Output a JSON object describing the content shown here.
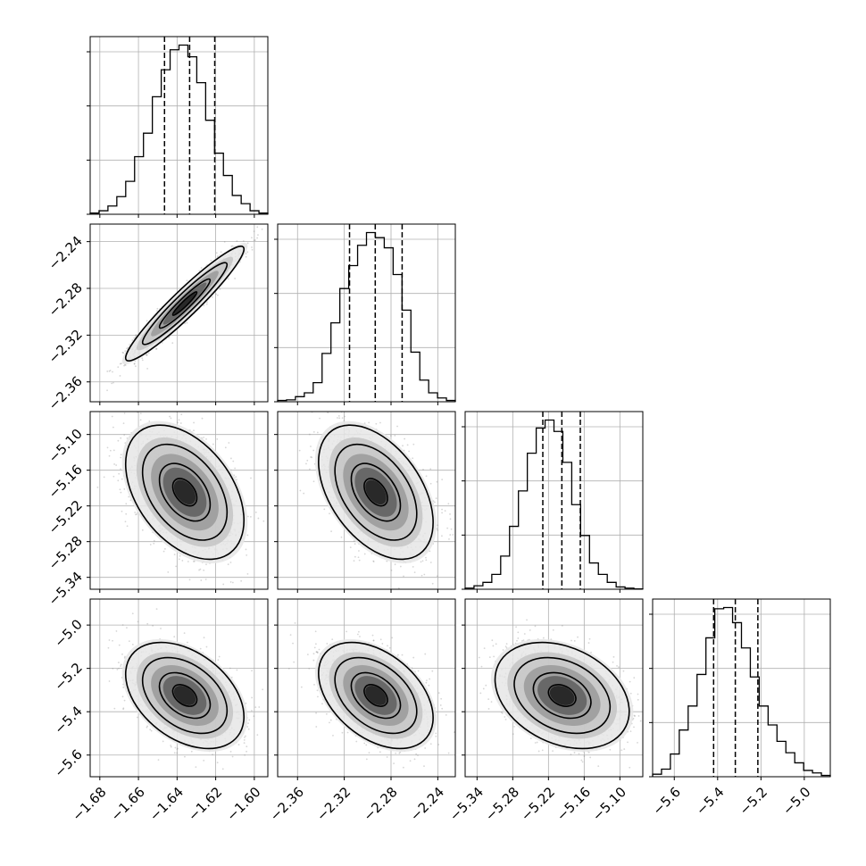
{
  "chart_data": {
    "type": "corner",
    "title": "",
    "grid": true,
    "variables": [
      {
        "index": 0,
        "range": [
          -1.685,
          -1.593
        ],
        "quantiles": [
          -1.6465,
          -1.6335,
          -1.6205
        ],
        "ticks": [
          {
            "value": -1.68,
            "label": "−1.68"
          },
          {
            "value": -1.66,
            "label": "−1.66"
          },
          {
            "value": -1.64,
            "label": "−1.64"
          },
          {
            "value": -1.62,
            "label": "−1.62"
          },
          {
            "value": -1.6,
            "label": "−1.60"
          }
        ],
        "histogram": [
          0.2,
          0.6,
          1.4,
          3.0,
          5.6,
          9.8,
          13.8,
          20.0,
          24.6,
          28.0,
          28.8,
          26.8,
          22.4,
          16.0,
          10.4,
          6.6,
          3.2,
          1.8,
          0.6,
          0.2
        ]
      },
      {
        "index": 1,
        "range": [
          -2.377,
          -2.225
        ],
        "quantiles": [
          -2.3155,
          -2.2935,
          -2.2705
        ],
        "ticks": [
          {
            "value": -2.36,
            "label": "−2.36"
          },
          {
            "value": -2.32,
            "label": "−2.32"
          },
          {
            "value": -2.28,
            "label": "−2.28"
          },
          {
            "value": -2.24,
            "label": "−2.24"
          }
        ],
        "histogram": [
          0.2,
          0.3,
          0.8,
          1.4,
          3.0,
          7.6,
          12.4,
          17.8,
          21.4,
          24.6,
          26.6,
          25.8,
          24.2,
          20.0,
          14.4,
          7.8,
          3.4,
          1.4,
          0.6,
          0.2
        ]
      },
      {
        "index": 2,
        "range": [
          -5.36,
          -5.0615
        ],
        "quantiles": [
          -5.2295,
          -5.1975,
          -5.1665
        ],
        "ticks": [
          {
            "value": -5.34,
            "label": "−5.34"
          },
          {
            "value": -5.28,
            "label": "−5.28"
          },
          {
            "value": -5.22,
            "label": "−5.22"
          },
          {
            "value": -5.16,
            "label": "−5.16"
          },
          {
            "value": -5.1,
            "label": "−5.10"
          }
        ],
        "histogram": [
          0.2,
          0.6,
          1.2,
          2.6,
          5.8,
          11.0,
          17.2,
          23.8,
          28.2,
          29.6,
          27.6,
          22.2,
          14.8,
          9.4,
          4.6,
          2.6,
          1.2,
          0.4,
          0.2,
          0.05
        ]
      },
      {
        "index": 3,
        "range": [
          -5.7,
          -4.88
        ],
        "quantiles": [
          -5.4185,
          -5.3183,
          -5.2143
        ],
        "ticks": [
          {
            "value": -5.6,
            "label": "−5.6"
          },
          {
            "value": -5.4,
            "label": "−5.4"
          },
          {
            "value": -5.2,
            "label": "−5.2"
          },
          {
            "value": -5.0,
            "label": "−5.0"
          }
        ],
        "histogram": [
          0.4,
          1.2,
          3.6,
          7.4,
          11.2,
          16.2,
          22.0,
          26.6,
          26.8,
          24.4,
          20.4,
          15.8,
          11.2,
          8.2,
          5.6,
          3.8,
          2.2,
          1.0,
          0.6,
          0.2
        ]
      }
    ],
    "pairs": [
      {
        "row": 1,
        "col": 0,
        "center": [
          -1.636,
          -2.293
        ],
        "sd": [
          0.0125,
          0.02
        ],
        "rho": 0.95
      },
      {
        "row": 2,
        "col": 0,
        "center": [
          -1.636,
          -5.197
        ],
        "sd": [
          0.0125,
          0.046
        ],
        "rho": -0.42
      },
      {
        "row": 2,
        "col": 1,
        "center": [
          -2.293,
          -5.197
        ],
        "sd": [
          0.02,
          0.046
        ],
        "rho": -0.45
      },
      {
        "row": 3,
        "col": 0,
        "center": [
          -1.636,
          -5.325
        ],
        "sd": [
          0.0125,
          0.1
        ],
        "rho": -0.4
      },
      {
        "row": 3,
        "col": 1,
        "center": [
          -2.293,
          -5.325
        ],
        "sd": [
          0.02,
          0.1
        ],
        "rho": -0.42
      },
      {
        "row": 3,
        "col": 2,
        "center": [
          -5.197,
          -5.325
        ],
        "sd": [
          0.046,
          0.1
        ],
        "rho": -0.3
      }
    ]
  }
}
